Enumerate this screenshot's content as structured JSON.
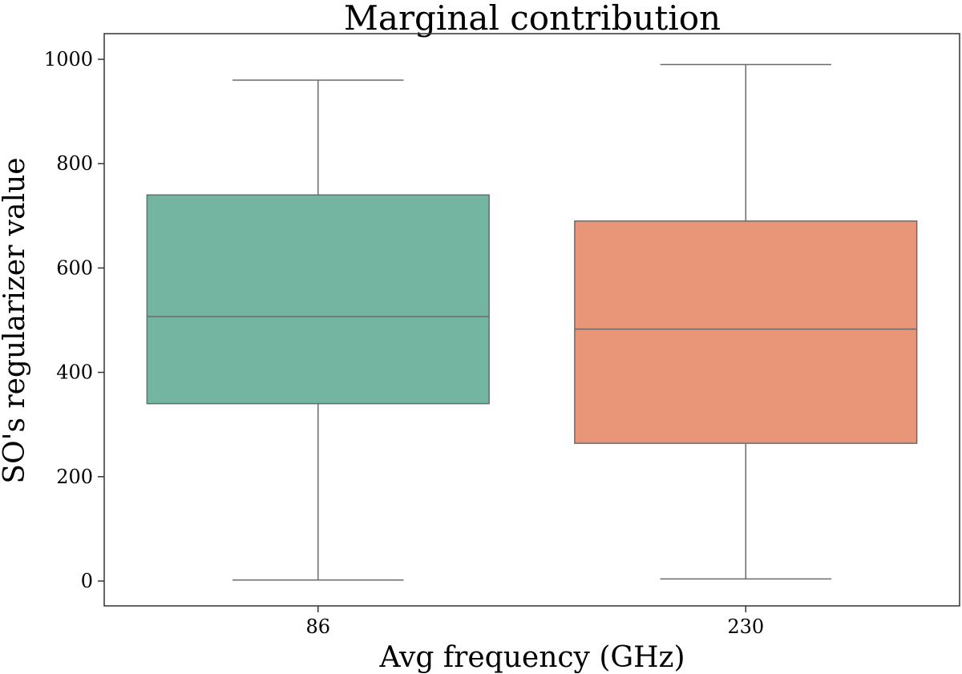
{
  "chart_data": {
    "type": "box",
    "title": "Marginal contribution",
    "xlabel": "Avg frequency (GHz)",
    "ylabel": "SO's regularizer value",
    "categories": [
      "86",
      "230"
    ],
    "ylim": [
      -48,
      1000
    ],
    "yticks": [
      0,
      200,
      400,
      600,
      800,
      1000
    ],
    "ytick_labels": [
      "0",
      "200",
      "400",
      "600",
      "800",
      "1000"
    ],
    "grid": false,
    "boxes": [
      {
        "name": "86",
        "min": 2,
        "q1": 340,
        "median": 507,
        "q3": 740,
        "max": 960,
        "color": "#74b5a2"
      },
      {
        "name": "230",
        "min": 4,
        "q1": 264,
        "median": 483,
        "q3": 690,
        "max": 990,
        "color": "#e99578"
      }
    ]
  }
}
